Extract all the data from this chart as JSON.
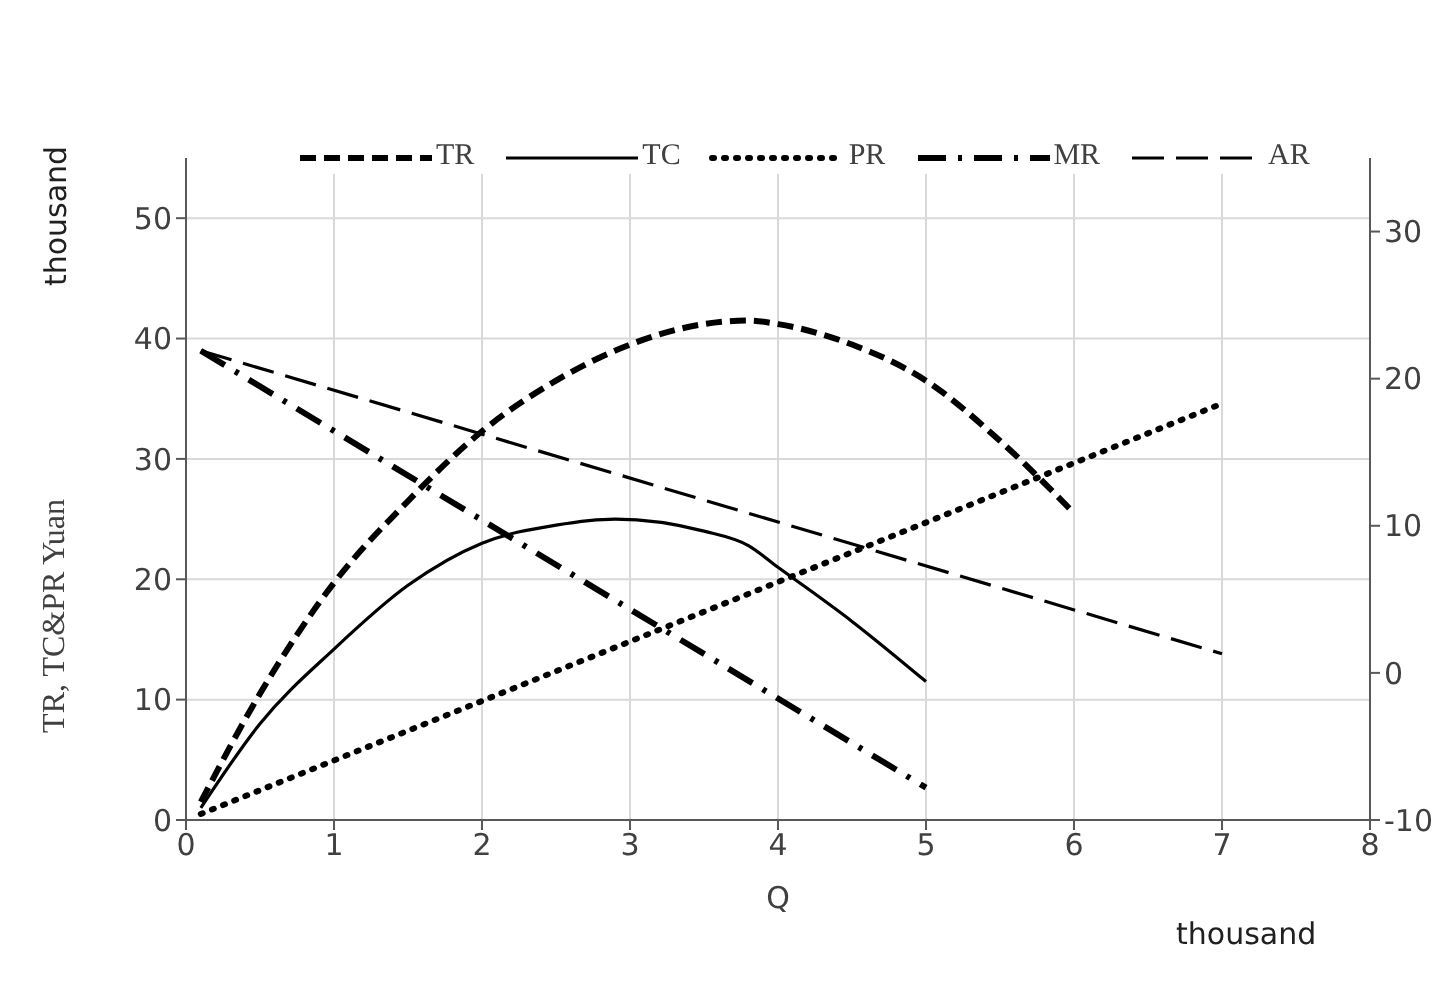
{
  "chart_data": {
    "type": "line",
    "xlabel": "Q",
    "ylabel": "TR, TC&PR Yuan",
    "annotations": [
      "thousand",
      "thousand"
    ],
    "xlim": [
      0,
      8
    ],
    "xticks": [
      0,
      1,
      2,
      3,
      4,
      5,
      6,
      7,
      8
    ],
    "ylim": [
      0,
      55
    ],
    "yticks": [
      0,
      10,
      20,
      30,
      40,
      50
    ],
    "y2lim": [
      -10,
      35
    ],
    "y2ticks": [
      -10,
      0,
      10,
      20,
      30
    ],
    "grid": true,
    "legend": "top",
    "marker": "none",
    "series": [
      {
        "name": "TR",
        "color": "#000000",
        "line_style": "dashed",
        "x": [
          0.1,
          0.5,
          1,
          1.5,
          2,
          2.5,
          3,
          3.5,
          3.8,
          4,
          4.5,
          5,
          5.5,
          6
        ],
        "values": [
          1.5,
          10.5,
          19.7,
          26.5,
          32.3,
          36.5,
          39.5,
          41.2,
          41.5,
          41.2,
          39.5,
          36.5,
          31.5,
          25.5
        ]
      },
      {
        "name": "TC",
        "color": "#000000",
        "line_style": "solid",
        "x": [
          0.1,
          0.5,
          1,
          1.5,
          2,
          2.5,
          2.9,
          3.5,
          3.8,
          4,
          4.5,
          5
        ],
        "values": [
          1,
          8,
          14.2,
          19.5,
          23,
          24.5,
          25,
          24,
          22.8,
          21,
          16.5,
          11.5
        ]
      },
      {
        "name": "PR",
        "color": "#000000",
        "line_style": "dotted",
        "x": [
          0.1,
          7
        ],
        "values": [
          0.5,
          34.6
        ]
      },
      {
        "name": "MR",
        "color": "#000000",
        "line_style": "dashdot",
        "axis": "y2",
        "x": [
          0.1,
          5
        ],
        "values": [
          21.9,
          -7.8
        ]
      },
      {
        "name": "AR",
        "color": "#000000",
        "line_style": "longdash",
        "axis": "y2",
        "x": [
          0.1,
          7
        ],
        "values": [
          21.9,
          1.3
        ]
      }
    ]
  }
}
